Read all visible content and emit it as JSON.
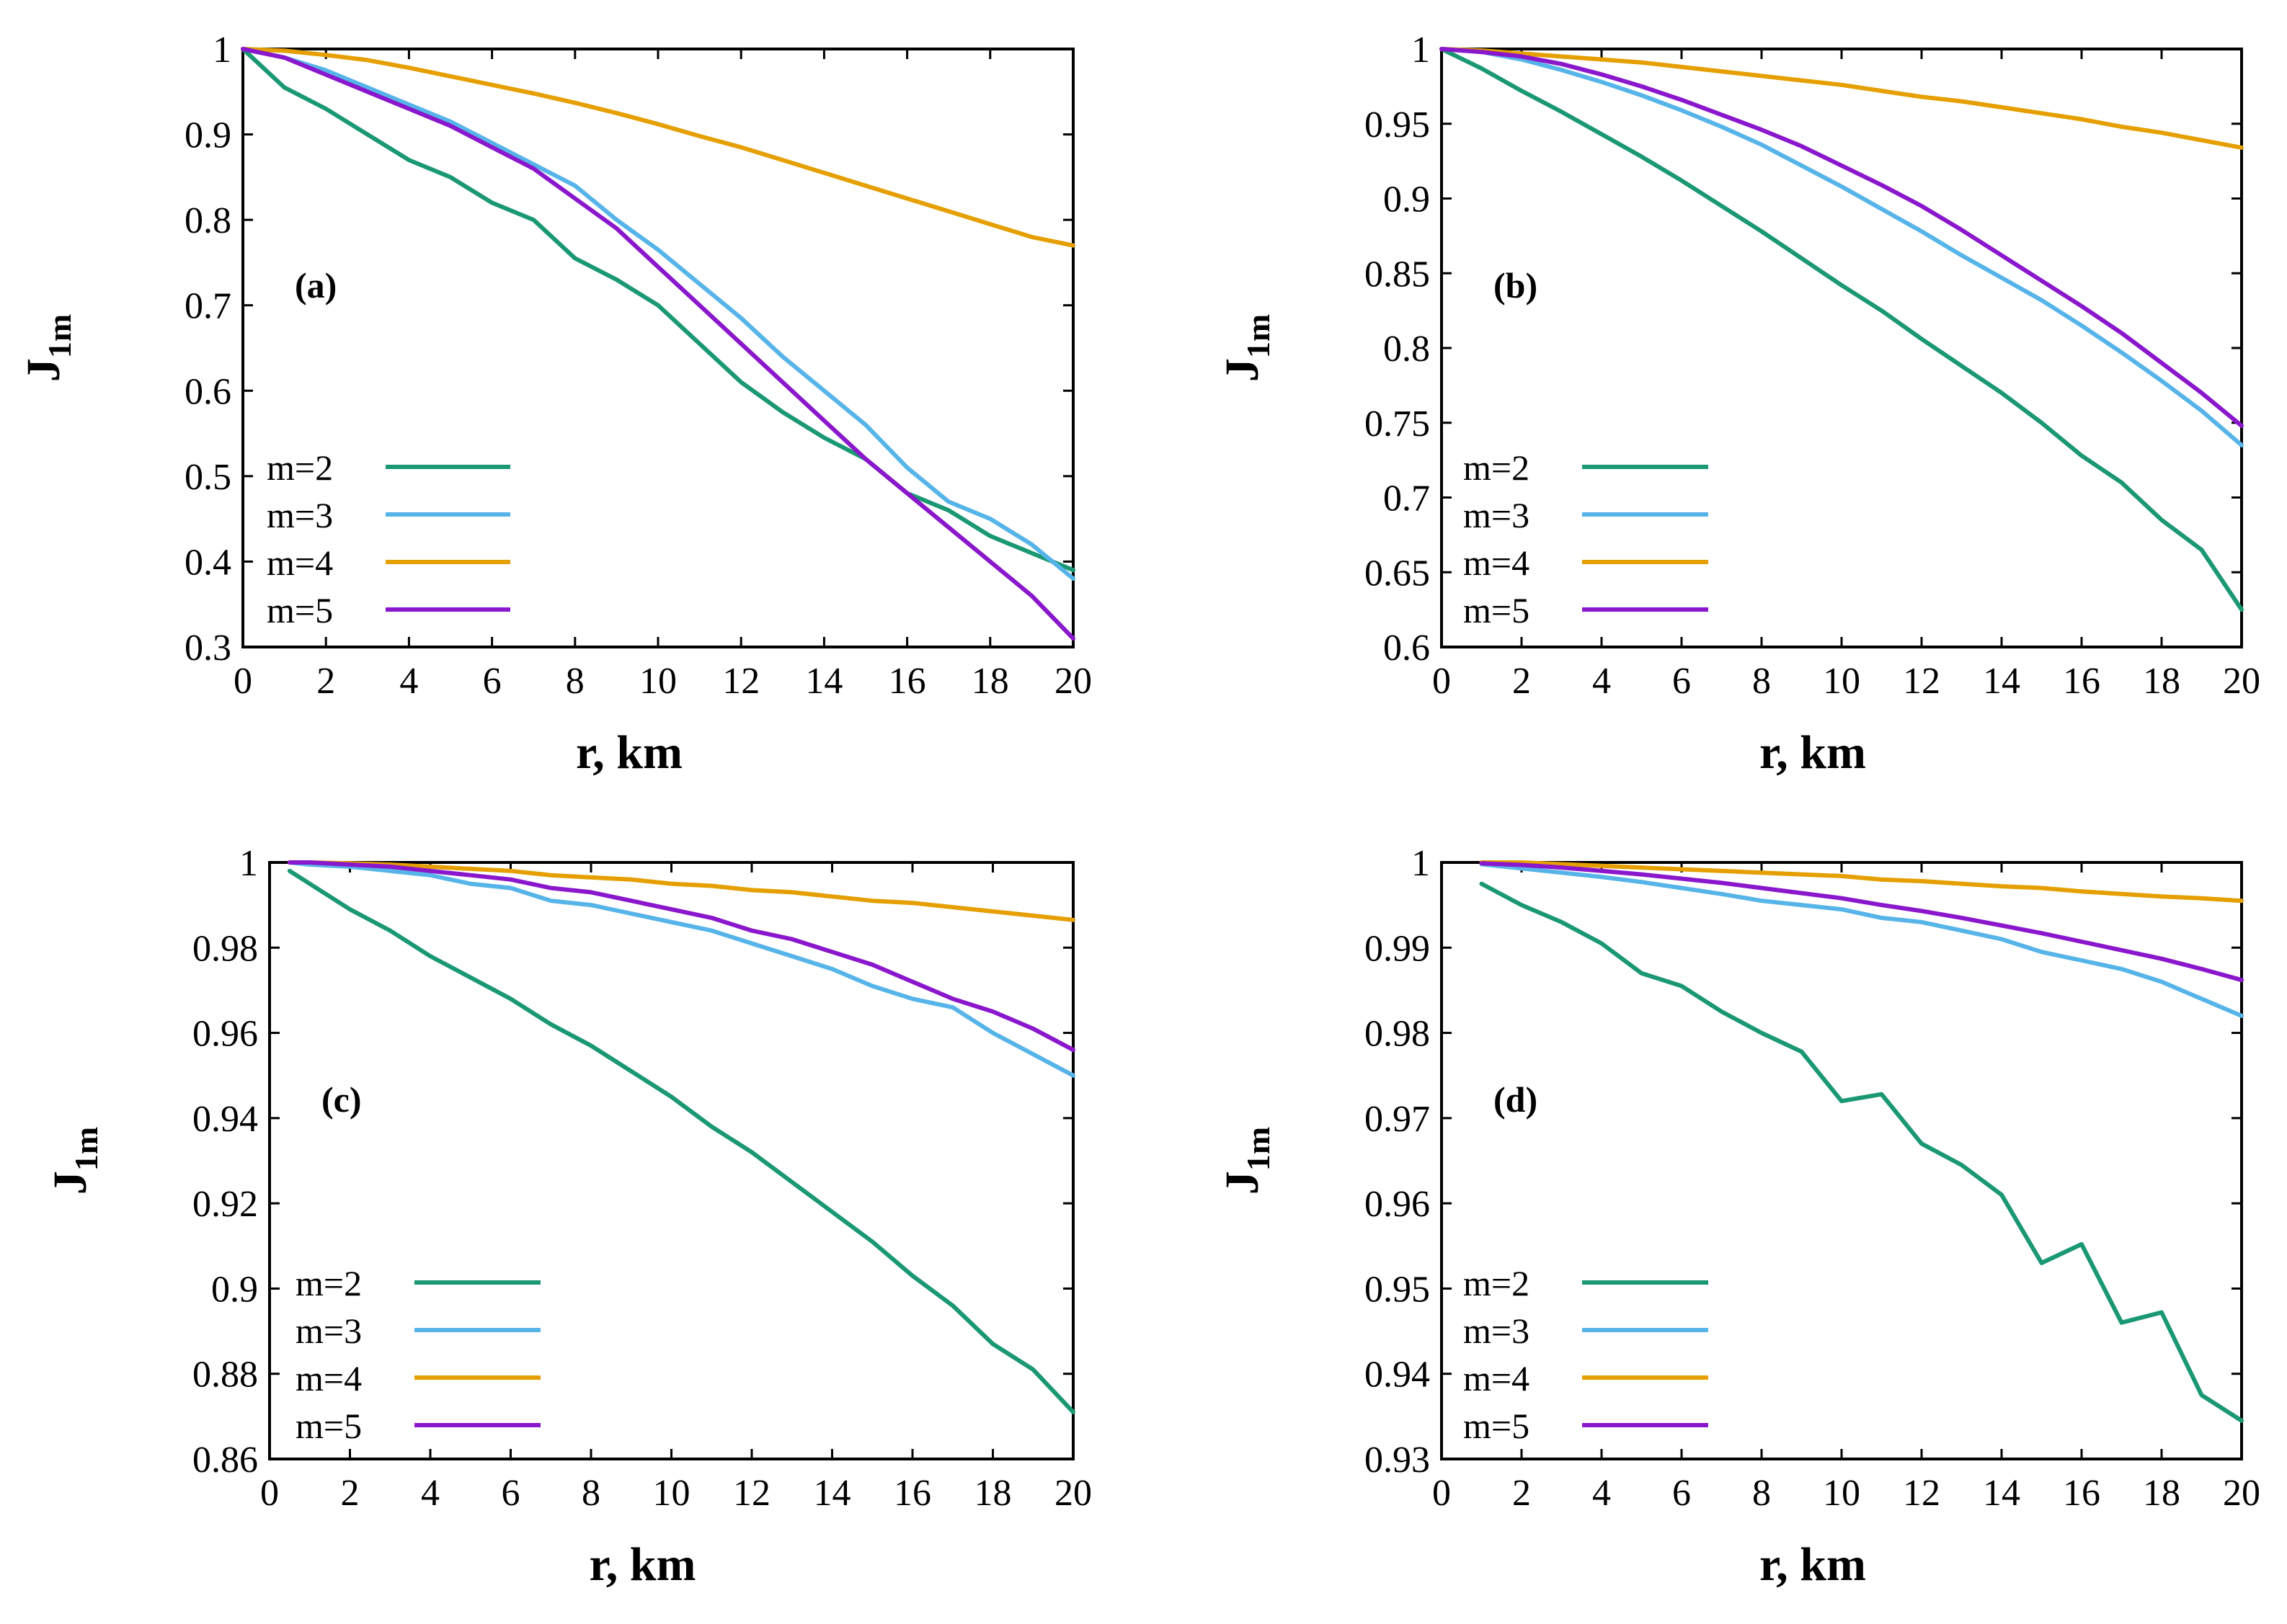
{
  "colors": {
    "m=2": "#1a9873",
    "m=3": "#56b4e9",
    "m=4": "#e69f00",
    "m=5": "#8a17cc"
  },
  "chart_data": [
    {
      "type": "line",
      "panel": "(a)",
      "xlabel": "r, km",
      "ylabel": "J1m",
      "ylabel_main": "J",
      "ylabel_sub": "1m",
      "xlim": [
        0,
        20
      ],
      "ylim": [
        0.3,
        1
      ],
      "xticks": [
        "0",
        "2",
        "4",
        "6",
        "8",
        "10",
        "12",
        "14",
        "16",
        "18",
        "20"
      ],
      "yticks": [
        "0.3",
        "0.4",
        "0.5",
        "0.6",
        "0.7",
        "0.8",
        "0.9",
        "1"
      ],
      "legend_position": "bottom-left",
      "x": [
        0,
        1,
        2,
        3,
        4,
        5,
        6,
        7,
        8,
        9,
        10,
        11,
        12,
        13,
        14,
        15,
        16,
        17,
        18,
        19,
        20
      ],
      "series": [
        {
          "name": "m=2",
          "values": [
            1.0,
            0.955,
            0.93,
            0.9,
            0.87,
            0.85,
            0.82,
            0.8,
            0.755,
            0.73,
            0.7,
            0.655,
            0.61,
            0.575,
            0.545,
            0.52,
            0.48,
            0.46,
            0.43,
            0.41,
            0.39
          ]
        },
        {
          "name": "m=3",
          "values": [
            1.0,
            0.99,
            0.975,
            0.955,
            0.935,
            0.915,
            0.89,
            0.865,
            0.84,
            0.8,
            0.765,
            0.725,
            0.685,
            0.64,
            0.6,
            0.56,
            0.51,
            0.47,
            0.45,
            0.42,
            0.38
          ]
        },
        {
          "name": "m=4",
          "values": [
            1.0,
            0.998,
            0.993,
            0.987,
            0.978,
            0.968,
            0.958,
            0.948,
            0.937,
            0.925,
            0.912,
            0.898,
            0.885,
            0.87,
            0.855,
            0.84,
            0.825,
            0.81,
            0.795,
            0.78,
            0.77
          ]
        },
        {
          "name": "m=5",
          "values": [
            1.0,
            0.99,
            0.97,
            0.95,
            0.93,
            0.91,
            0.885,
            0.86,
            0.825,
            0.79,
            0.745,
            0.7,
            0.655,
            0.61,
            0.565,
            0.52,
            0.48,
            0.44,
            0.4,
            0.36,
            0.31
          ]
        }
      ]
    },
    {
      "type": "line",
      "panel": "(b)",
      "xlabel": "r, km",
      "ylabel": "J1m",
      "ylabel_main": "J",
      "ylabel_sub": "1m",
      "xlim": [
        0,
        20
      ],
      "ylim": [
        0.6,
        1
      ],
      "xticks": [
        "0",
        "2",
        "4",
        "6",
        "8",
        "10",
        "12",
        "14",
        "16",
        "18",
        "20"
      ],
      "yticks": [
        "0.6",
        "0.65",
        "0.7",
        "0.75",
        "0.8",
        "0.85",
        "0.9",
        "0.95",
        "1"
      ],
      "legend_position": "bottom-left",
      "x": [
        0,
        1,
        2,
        3,
        4,
        5,
        6,
        7,
        8,
        9,
        10,
        11,
        12,
        13,
        14,
        15,
        16,
        17,
        18,
        19,
        20
      ],
      "series": [
        {
          "name": "m=2",
          "values": [
            1.0,
            0.987,
            0.972,
            0.958,
            0.943,
            0.928,
            0.912,
            0.895,
            0.878,
            0.86,
            0.842,
            0.825,
            0.806,
            0.788,
            0.77,
            0.75,
            0.728,
            0.71,
            0.685,
            0.665,
            0.625
          ]
        },
        {
          "name": "m=3",
          "values": [
            1.0,
            0.998,
            0.993,
            0.986,
            0.978,
            0.969,
            0.959,
            0.948,
            0.936,
            0.922,
            0.908,
            0.893,
            0.878,
            0.862,
            0.847,
            0.832,
            0.815,
            0.797,
            0.778,
            0.758,
            0.735
          ]
        },
        {
          "name": "m=4",
          "values": [
            1.0,
            0.999,
            0.997,
            0.995,
            0.993,
            0.991,
            0.988,
            0.985,
            0.982,
            0.979,
            0.976,
            0.972,
            0.968,
            0.965,
            0.961,
            0.957,
            0.953,
            0.948,
            0.944,
            0.939,
            0.934
          ]
        },
        {
          "name": "m=5",
          "values": [
            1.0,
            0.998,
            0.995,
            0.99,
            0.983,
            0.975,
            0.966,
            0.956,
            0.946,
            0.935,
            0.922,
            0.909,
            0.895,
            0.879,
            0.862,
            0.845,
            0.828,
            0.81,
            0.79,
            0.77,
            0.748
          ]
        }
      ]
    },
    {
      "type": "line",
      "panel": "(c)",
      "xlabel": "r, km",
      "ylabel": "J1m",
      "ylabel_main": "J",
      "ylabel_sub": "1m",
      "xlim": [
        0,
        20
      ],
      "ylim": [
        0.86,
        1
      ],
      "xticks": [
        "0",
        "2",
        "4",
        "6",
        "8",
        "10",
        "12",
        "14",
        "16",
        "18",
        "20"
      ],
      "yticks": [
        "0.86",
        "0.88",
        "0.9",
        "0.92",
        "0.94",
        "0.96",
        "0.98",
        "1"
      ],
      "legend_position": "bottom-left",
      "x": [
        0.5,
        1,
        2,
        3,
        4,
        5,
        6,
        7,
        8,
        9,
        10,
        11,
        12,
        13,
        14,
        15,
        16,
        17,
        18,
        19,
        20
      ],
      "series": [
        {
          "name": "m=2",
          "values": [
            0.998,
            0.995,
            0.989,
            0.984,
            0.978,
            0.973,
            0.968,
            0.962,
            0.957,
            0.951,
            0.945,
            0.938,
            0.932,
            0.925,
            0.918,
            0.911,
            0.903,
            0.896,
            0.887,
            0.881,
            0.871
          ]
        },
        {
          "name": "m=3",
          "values": [
            1.0,
            0.9995,
            0.999,
            0.998,
            0.997,
            0.995,
            0.994,
            0.991,
            0.99,
            0.988,
            0.986,
            0.984,
            0.981,
            0.978,
            0.975,
            0.971,
            0.968,
            0.966,
            0.96,
            0.955,
            0.95
          ]
        },
        {
          "name": "m=4",
          "values": [
            1.0,
            1.0,
            0.9998,
            0.9995,
            0.999,
            0.9985,
            0.998,
            0.997,
            0.9965,
            0.996,
            0.995,
            0.9945,
            0.9935,
            0.993,
            0.992,
            0.991,
            0.9905,
            0.9895,
            0.9885,
            0.9875,
            0.9865
          ]
        },
        {
          "name": "m=5",
          "values": [
            1.0,
            1.0,
            0.9995,
            0.999,
            0.998,
            0.997,
            0.996,
            0.994,
            0.993,
            0.991,
            0.989,
            0.987,
            0.984,
            0.982,
            0.979,
            0.976,
            0.972,
            0.968,
            0.965,
            0.961,
            0.956
          ]
        }
      ]
    },
    {
      "type": "line",
      "panel": "(d)",
      "xlabel": "r, km",
      "ylabel": "J1m",
      "ylabel_main": "J",
      "ylabel_sub": "1m",
      "xlim": [
        0,
        20
      ],
      "ylim": [
        0.93,
        1
      ],
      "xticks": [
        "0",
        "2",
        "4",
        "6",
        "8",
        "10",
        "12",
        "14",
        "16",
        "18",
        "20"
      ],
      "yticks": [
        "0.93",
        "0.94",
        "0.95",
        "0.96",
        "0.97",
        "0.98",
        "0.99",
        "1"
      ],
      "legend_position": "bottom-left",
      "x": [
        1,
        2,
        3,
        4,
        5,
        6,
        7,
        8,
        9,
        10,
        11,
        12,
        13,
        14,
        15,
        16,
        17,
        18,
        19,
        20
      ],
      "series": [
        {
          "name": "m=2",
          "values": [
            0.9975,
            0.995,
            0.993,
            0.9905,
            0.987,
            0.9855,
            0.9825,
            0.98,
            0.9778,
            0.972,
            0.9728,
            0.967,
            0.9645,
            0.961,
            0.953,
            0.9552,
            0.946,
            0.9472,
            0.9375,
            0.9345
          ]
        },
        {
          "name": "m=3",
          "values": [
            0.9998,
            0.9993,
            0.9988,
            0.9983,
            0.9977,
            0.997,
            0.9963,
            0.9955,
            0.995,
            0.9945,
            0.9935,
            0.993,
            0.992,
            0.991,
            0.9895,
            0.9885,
            0.9875,
            0.986,
            0.984,
            0.982
          ]
        },
        {
          "name": "m=4",
          "values": [
            1.0,
            1.0,
            0.9998,
            0.9996,
            0.9994,
            0.9992,
            0.999,
            0.9988,
            0.9986,
            0.9984,
            0.998,
            0.9978,
            0.9975,
            0.9972,
            0.997,
            0.9966,
            0.9963,
            0.996,
            0.9958,
            0.9955
          ]
        },
        {
          "name": "m=5",
          "values": [
            0.9999,
            0.9997,
            0.9994,
            0.999,
            0.9986,
            0.9981,
            0.9976,
            0.997,
            0.9964,
            0.9958,
            0.995,
            0.9943,
            0.9935,
            0.9926,
            0.9917,
            0.9907,
            0.9897,
            0.9887,
            0.9875,
            0.9862
          ]
        }
      ]
    }
  ]
}
